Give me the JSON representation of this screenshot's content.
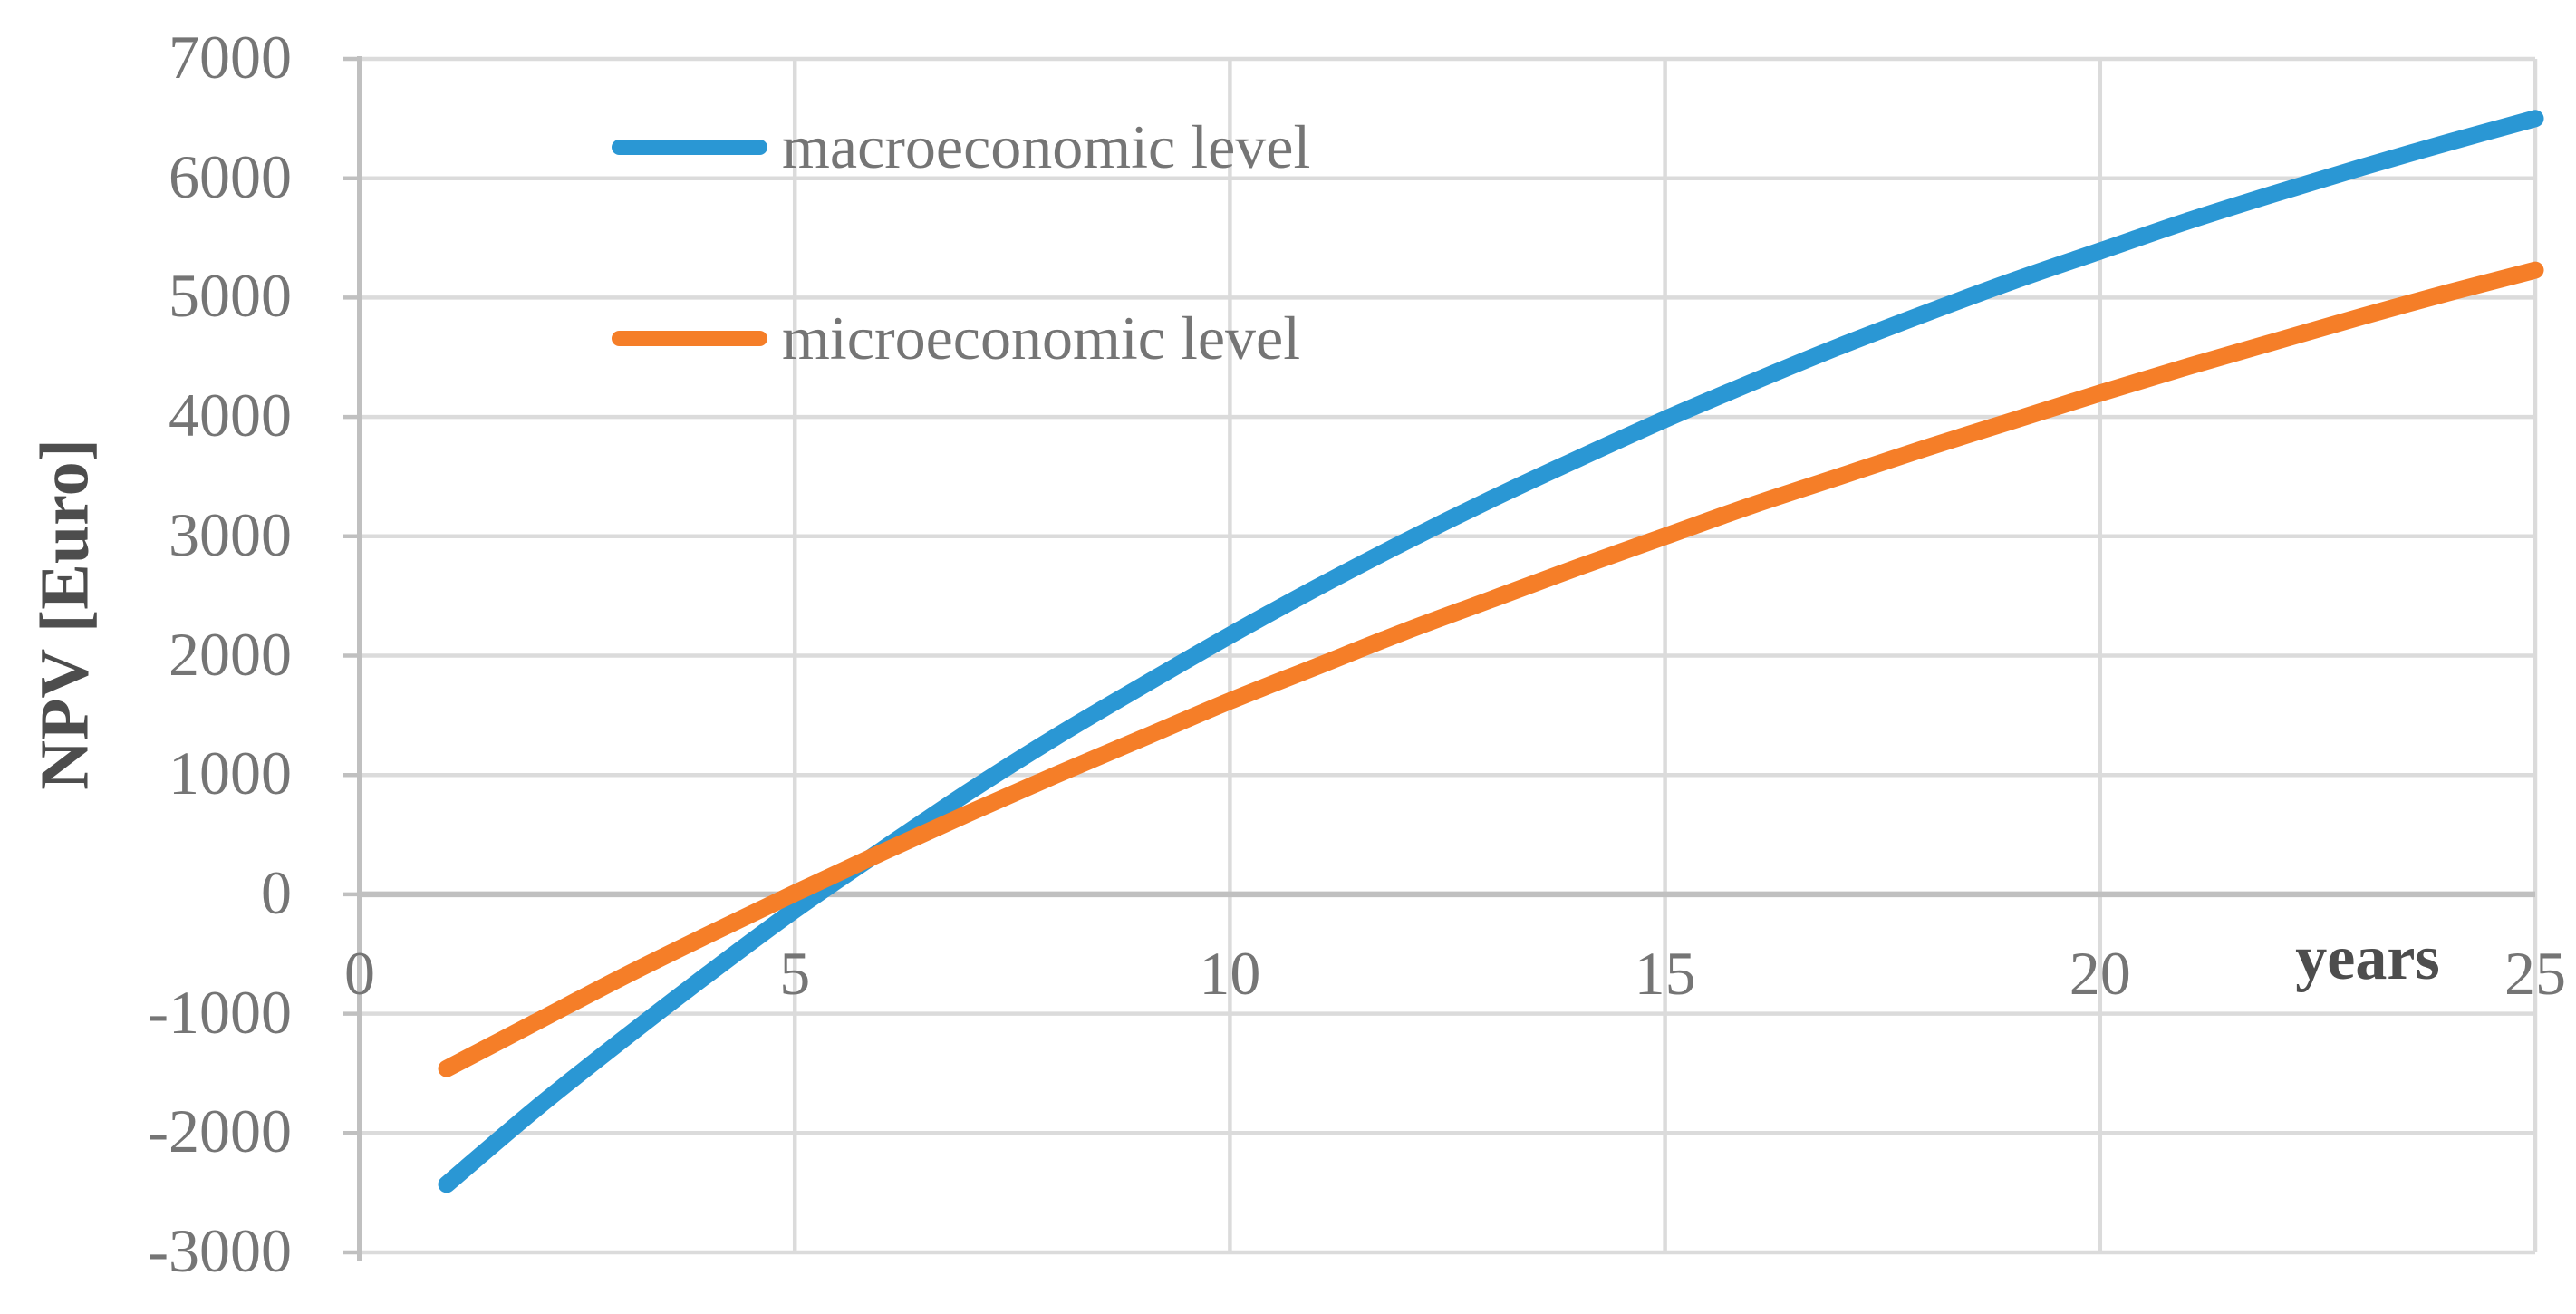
{
  "chart_data": {
    "type": "line",
    "title": "",
    "xlabel": "years",
    "ylabel": "NPV [Euro]",
    "xlim": [
      0,
      25
    ],
    "ylim": [
      -3000,
      7000
    ],
    "x_ticks": [
      0,
      5,
      10,
      15,
      20,
      25
    ],
    "y_ticks": [
      7000,
      6000,
      5000,
      4000,
      3000,
      2000,
      1000,
      0,
      -1000,
      -2000,
      -3000
    ],
    "grid": true,
    "legend_position": "top-left-inside",
    "x": [
      1,
      2,
      3,
      4,
      5,
      6,
      7,
      8,
      9,
      10,
      11,
      12,
      13,
      14,
      15,
      16,
      17,
      18,
      19,
      20,
      21,
      22,
      23,
      24,
      25
    ],
    "series": [
      {
        "name": "macroeconomic level",
        "color": "#2A97D4",
        "values": [
          -2430,
          -1810,
          -1230,
          -670,
          -130,
          370,
          860,
          1320,
          1750,
          2170,
          2570,
          2950,
          3310,
          3650,
          3980,
          4290,
          4590,
          4870,
          5140,
          5390,
          5640,
          5870,
          6090,
          6300,
          6500
        ]
      },
      {
        "name": "microeconomic level",
        "color": "#F57E28",
        "values": [
          -1460,
          -1080,
          -700,
          -340,
          10,
          350,
          680,
          1000,
          1310,
          1620,
          1910,
          2200,
          2470,
          2740,
          3000,
          3260,
          3500,
          3740,
          3970,
          4200,
          4420,
          4630,
          4840,
          5040,
          5230
        ]
      }
    ],
    "colors": {
      "gridline": "#DBDBDB",
      "axis_line": "#C0C0C0",
      "tick_label": "#757575",
      "axis_title": "#4D4D4D",
      "background": "#FFFFFF"
    }
  }
}
